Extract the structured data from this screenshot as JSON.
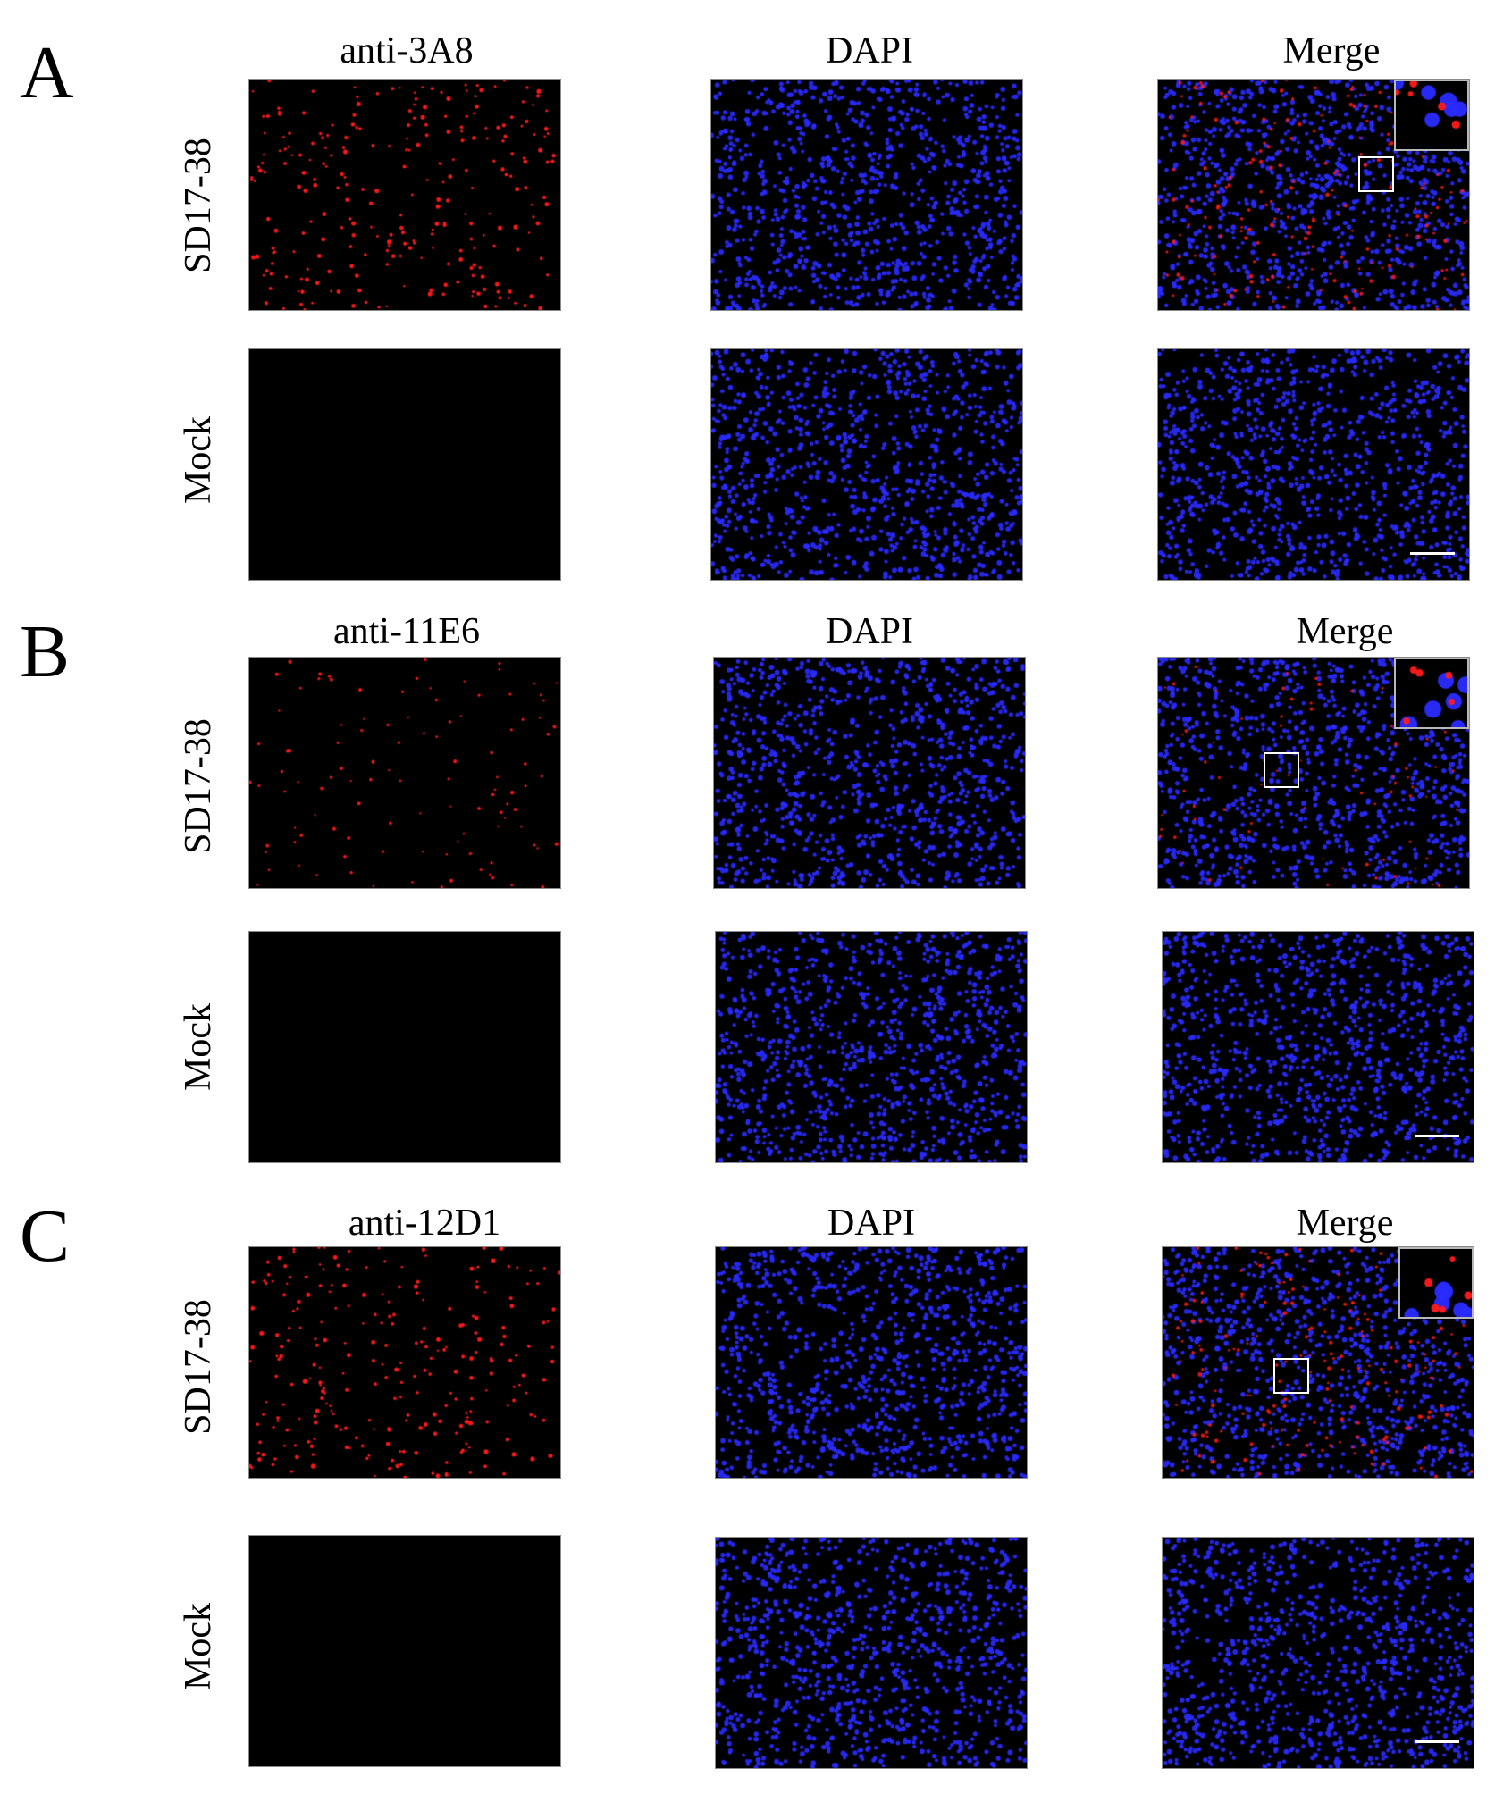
{
  "panels": [
    {
      "letter": "A",
      "columns": [
        "anti-3A8",
        "DAPI",
        "Merge"
      ],
      "rows": [
        "SD17-38",
        "Mock"
      ]
    },
    {
      "letter": "B",
      "columns": [
        "anti-11E6",
        "DAPI",
        "Merge"
      ],
      "rows": [
        "SD17-38",
        "Mock"
      ]
    },
    {
      "letter": "C",
      "columns": [
        "anti-12D1",
        "DAPI",
        "Merge"
      ],
      "rows": [
        "SD17-38",
        "Mock"
      ]
    }
  ],
  "colors": {
    "nuclei": "#2a2bff",
    "signal": "#ff1a1a",
    "background": "#000000",
    "scalebar": "#ffffff"
  }
}
